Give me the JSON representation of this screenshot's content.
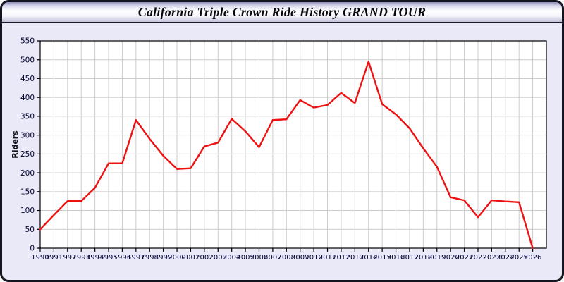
{
  "window": {
    "title": "California Triple Crown Ride History GRAND TOUR"
  },
  "colors": {
    "page_bg": "#e9e9f7",
    "plot_bg": "#ffffff",
    "grid": "#cccccc",
    "axis": "#000000",
    "tick_text": "#000033",
    "line": "#ee1111",
    "titlebar_border": "#1a1a28"
  },
  "chart_data": {
    "type": "line",
    "title": "California Triple Crown Ride History GRAND TOUR",
    "xlabel": "",
    "ylabel": "Riders",
    "legend": null,
    "grid": true,
    "ylim": [
      0,
      550
    ],
    "y_ticks": [
      0,
      50,
      100,
      150,
      200,
      250,
      300,
      350,
      400,
      450,
      500,
      550
    ],
    "x": [
      1990,
      1991,
      1992,
      1993,
      1994,
      1995,
      1996,
      1997,
      1998,
      1999,
      2000,
      2001,
      2002,
      2003,
      2004,
      2005,
      2006,
      2007,
      2008,
      2009,
      2010,
      2011,
      2012,
      2013,
      2014,
      2015,
      2016,
      2017,
      2018,
      2019,
      2020,
      2021,
      2022,
      2023,
      2024,
      2025,
      2026
    ],
    "series": [
      {
        "name": "Riders",
        "color": "#ee1111",
        "values": [
          50,
          88,
          125,
          125,
          160,
          225,
          225,
          340,
          290,
          245,
          210,
          212,
          270,
          280,
          343,
          310,
          268,
          340,
          342,
          393,
          373,
          380,
          412,
          385,
          495,
          382,
          355,
          318,
          265,
          216,
          135,
          127,
          82,
          127,
          124,
          122,
          0
        ]
      }
    ]
  }
}
